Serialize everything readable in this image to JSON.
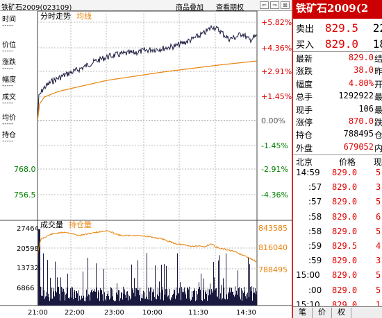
{
  "contract": "铁矿石2009(023109)",
  "links": {
    "overlay": "商品叠加",
    "view_options": "查看期权"
  },
  "legend": {
    "time_share": "分时走势",
    "avg_line": "均线",
    "volume": "成交量",
    "open_interest": "持仓量"
  },
  "info_labels": [
    "时间",
    "价位",
    "涨跌",
    "幅度",
    "成交",
    "均价",
    "持仓"
  ],
  "info_dash": "-----",
  "price_axis_left": [
    "768.0",
    "756.5"
  ],
  "pct_axis": [
    {
      "label": "+5.82%",
      "color": "#e00000"
    },
    {
      "label": "+4.36%",
      "color": "#e00000"
    },
    {
      "label": "+2.91%",
      "color": "#e00000"
    },
    {
      "label": "+1.45%",
      "color": "#e00000"
    },
    {
      "label": "0.00%",
      "color": "#555555"
    },
    {
      "label": "-1.45%",
      "color": "#008000"
    },
    {
      "label": "-2.91%",
      "color": "#008000"
    },
    {
      "label": "-4.36%",
      "color": "#008000"
    }
  ],
  "volume_axis": [
    "27464",
    "20598",
    "13732",
    "6866"
  ],
  "oi_axis": [
    "843585",
    "816040",
    "788495"
  ],
  "time_axis": [
    "21:00",
    "22:00",
    "23:00",
    "10:00",
    "11:30",
    "14:30"
  ],
  "quote": {
    "title": "铁矿石2009(2",
    "sell": {
      "label": "卖出",
      "price": "829.5",
      "vol": "22"
    },
    "buy": {
      "label": "买入",
      "price": "829.0",
      "vol": "18"
    },
    "rows": [
      {
        "label": "最新",
        "value": "829.0",
        "color": "red",
        "l2": "结"
      },
      {
        "label": "涨跌",
        "value": "38.0",
        "color": "red",
        "l2": "昨"
      },
      {
        "label": "幅度",
        "value": "4.80%",
        "color": "red",
        "l2": "开"
      },
      {
        "label": "总手",
        "value": "1292922",
        "color": "black",
        "l2": "最"
      },
      {
        "label": "现手",
        "value": "106",
        "color": "black",
        "l2": "最"
      },
      {
        "label": "涨停",
        "value": "870.0",
        "color": "red",
        "l2": "跌"
      },
      {
        "label": "持仓",
        "value": "788495",
        "color": "black",
        "l2": "仓"
      },
      {
        "label": "外盘",
        "value": "679052",
        "color": "red",
        "l2": "内"
      }
    ],
    "ticks_header": {
      "place": "北京",
      "price": "价格",
      "now": "现"
    },
    "ticks": [
      {
        "time": "14:59",
        "price": "829.0",
        "vol": "5"
      },
      {
        "time": ":57",
        "price": "829.0",
        "vol": "3"
      },
      {
        "time": ":57",
        "price": "829.0",
        "vol": "5"
      },
      {
        "time": ":58",
        "price": "829.0",
        "vol": "6"
      },
      {
        "time": ":58",
        "price": "829.0",
        "vol": "5"
      },
      {
        "time": ":59",
        "price": "829.5",
        "vol": "4"
      },
      {
        "time": ":59",
        "price": "829.0",
        "vol": "3"
      },
      {
        "time": "15:00",
        "price": "829.0",
        "vol": "5"
      },
      {
        "time": ":00",
        "price": "829.0",
        "vol": "5"
      },
      {
        "time": "15:10",
        "price": "829.0",
        "vol": "1"
      }
    ],
    "tabs": [
      "笔",
      "价",
      "权"
    ]
  },
  "colors": {
    "price_line": "#1a1a40",
    "avg_line": "#e8820a",
    "volume": "#1a1a40",
    "oi_line": "#e8820a",
    "up": "#e00000",
    "down": "#008000"
  }
}
